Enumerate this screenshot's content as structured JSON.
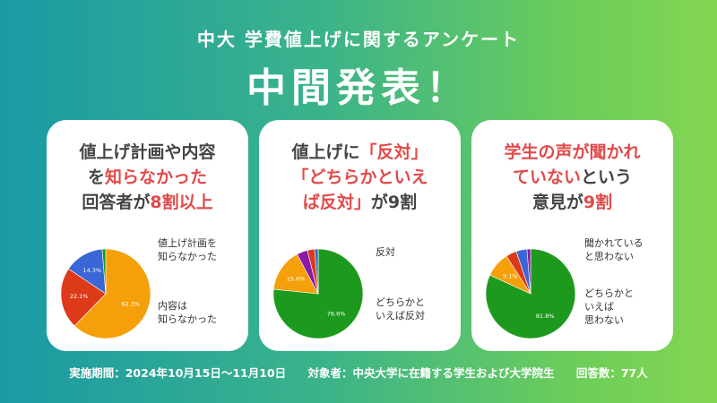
{
  "header": {
    "subtitle": "中大 学費値上げに関するアンケート",
    "title": "中間発表！"
  },
  "cards": [
    {
      "line1": "値上げ計画や内容",
      "line2_pre": "を",
      "line2_hl": "知らなかった",
      "line3_pre": "回答者が",
      "line3_hl": "8割以上",
      "labels": [
        "値上げ計画を\n知らなかった",
        "内容は\n知らなかった"
      ]
    },
    {
      "line1_pre": "値上げに",
      "line1_hl": "「反対」",
      "line2_hl": "「どちらかといえ",
      "line3_hl": "ば反対」",
      "line3_post": "が9割",
      "labels": [
        "反対",
        "どちらかと\nいえば反対"
      ]
    },
    {
      "line1_hl": "学生の声が聞かれ",
      "line2_hl": "ていない",
      "line2_post": "という",
      "line3_pre": "意見が",
      "line3_hl": "9割",
      "labels": [
        "聞かれている\nと思わない",
        "どちらかと\nいえば\n思わない"
      ]
    }
  ],
  "footer": {
    "period": "実施期間：2024年10月15日～11月10日",
    "target": "対象者：中央大学に在籍する学生および大学院生",
    "count": "回答数：77人"
  },
  "chart_data": [
    {
      "type": "pie",
      "slices": [
        {
          "value": 62.3,
          "label": "62.3%",
          "color": "#f5a00a"
        },
        {
          "value": 22.1,
          "label": "22.1%",
          "color": "#dd3a1a"
        },
        {
          "value": 14.3,
          "label": "14.3%",
          "color": "#3a66d6"
        },
        {
          "value": 1.3,
          "label": "",
          "color": "#1a9a2a"
        }
      ]
    },
    {
      "type": "pie",
      "slices": [
        {
          "value": 76.6,
          "label": "76.6%",
          "color": "#1d9a1d"
        },
        {
          "value": 15.6,
          "label": "15.6%",
          "color": "#f5a00a"
        },
        {
          "value": 3.9,
          "label": "",
          "color": "#8a1aa8"
        },
        {
          "value": 2.6,
          "label": "",
          "color": "#dd3a1a"
        },
        {
          "value": 1.3,
          "label": "",
          "color": "#3a66d6"
        }
      ]
    },
    {
      "type": "pie",
      "slices": [
        {
          "value": 81.8,
          "label": "81.8%",
          "color": "#1d9a1d"
        },
        {
          "value": 9.1,
          "label": "9.1%",
          "color": "#f5a00a"
        },
        {
          "value": 3.9,
          "label": "",
          "color": "#dd3a1a"
        },
        {
          "value": 3.9,
          "label": "",
          "color": "#3a66d6"
        },
        {
          "value": 1.3,
          "label": "",
          "color": "#8a1aa8"
        }
      ]
    }
  ]
}
